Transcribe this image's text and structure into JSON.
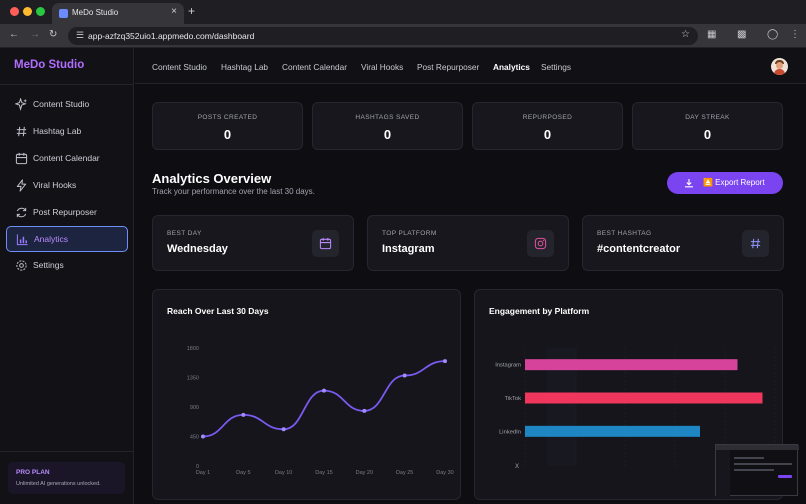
{
  "browser": {
    "tab_title": "MeDo Studio",
    "url": "app-azfzq352uio1.appmedo.com/dashboard",
    "traffic_colors": [
      "#ff5f57",
      "#febc2e",
      "#28c840"
    ]
  },
  "sidebar": {
    "brand": "MeDo Studio",
    "items": [
      {
        "label": "Content Studio",
        "icon": "sparkles-icon"
      },
      {
        "label": "Hashtag Lab",
        "icon": "hash-icon"
      },
      {
        "label": "Content Calendar",
        "icon": "calendar-icon"
      },
      {
        "label": "Viral Hooks",
        "icon": "bolt-icon"
      },
      {
        "label": "Post Repurposer",
        "icon": "refresh-icon"
      },
      {
        "label": "Analytics",
        "icon": "bar-chart-icon",
        "active": true
      },
      {
        "label": "Settings",
        "icon": "gear-icon"
      }
    ],
    "plan": {
      "title": "PRO PLAN",
      "subtitle": "Unlimited AI generations unlocked."
    }
  },
  "topnav": {
    "items": [
      "Content Studio",
      "Hashtag Lab",
      "Content Calendar",
      "Viral Hooks",
      "Post Repurposer",
      "Analytics",
      "Settings"
    ],
    "active": "Analytics"
  },
  "stats": [
    {
      "label": "POSTS CREATED",
      "value": "0"
    },
    {
      "label": "HASHTAGS SAVED",
      "value": "0"
    },
    {
      "label": "REPURPOSED",
      "value": "0"
    },
    {
      "label": "DAY STREAK",
      "value": "0"
    }
  ],
  "overview": {
    "title": "Analytics Overview",
    "subtitle": "Track your performance over the last 30 days.",
    "export_label": "⏏️ Export Report"
  },
  "highlights": [
    {
      "label": "BEST DAY",
      "value": "Wednesday",
      "icon": "calendar-icon",
      "icon_color": "#b98bff"
    },
    {
      "label": "TOP PLATFORM",
      "value": "Instagram",
      "icon": "instagram-icon",
      "icon_color": "#e0509a"
    },
    {
      "label": "BEST HASHTAG",
      "value": "#contentcreator",
      "icon": "hash-icon",
      "icon_color": "#8f96ff"
    }
  ],
  "chart_data": [
    {
      "type": "line",
      "title": "Reach Over Last 30 Days",
      "x": [
        "Day 1",
        "Day 5",
        "Day 10",
        "Day 15",
        "Day 20",
        "Day 25",
        "Day 30"
      ],
      "values": [
        450,
        780,
        560,
        1150,
        840,
        1380,
        1600
      ],
      "yticks": [
        0,
        450,
        900,
        1350,
        1800
      ],
      "ylim": [
        0,
        1800
      ],
      "color": "#7a5af0",
      "grid": false
    },
    {
      "type": "bar",
      "orientation": "horizontal",
      "title": "Engagement by Platform",
      "categories": [
        "Instagram",
        "TikTok",
        "LinkedIn"
      ],
      "values": [
        85,
        95,
        70
      ],
      "colors": [
        "#d6439a",
        "#f0365c",
        "#1f86c4"
      ],
      "xlim": [
        0,
        100
      ],
      "axis_label_fragment": "X",
      "grid": true
    }
  ]
}
